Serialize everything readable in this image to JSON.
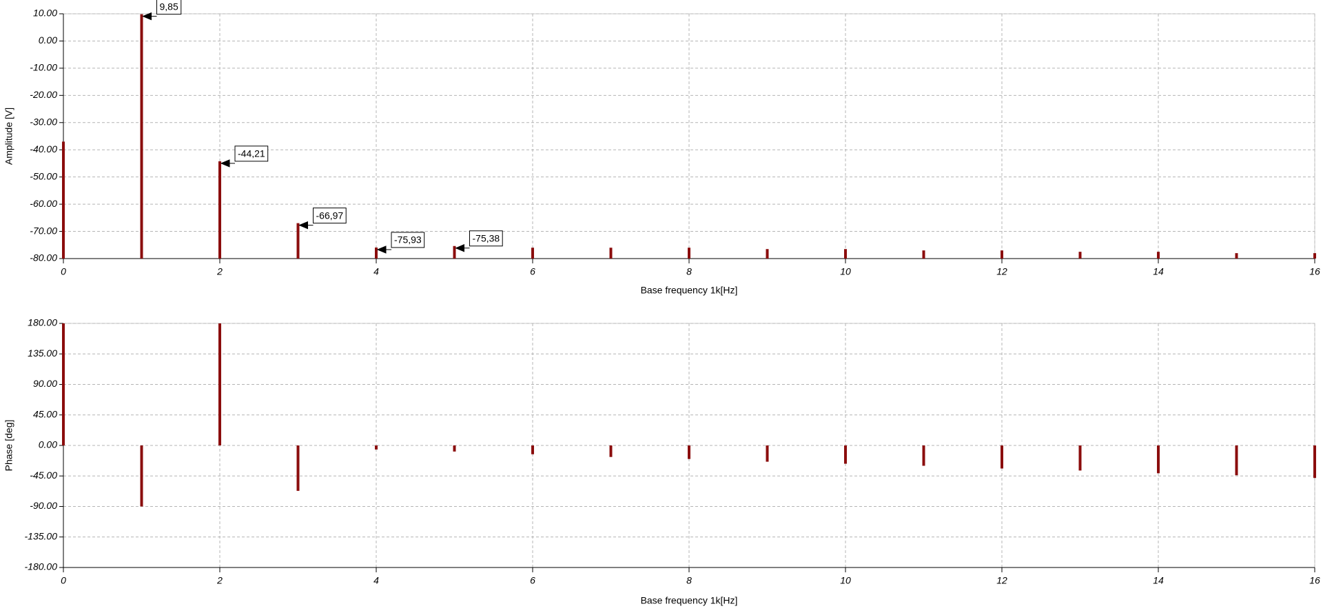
{
  "chart_data": [
    {
      "type": "stem",
      "ylabel": "Amplitude [V]",
      "xlabel": "Base frequency 1k[Hz]",
      "x": [
        0,
        1,
        2,
        3,
        4,
        5,
        6,
        7,
        8,
        9,
        10,
        11,
        12,
        13,
        14,
        15,
        16
      ],
      "values": [
        -37,
        9.85,
        -44.21,
        -66.97,
        -75.93,
        -75.38,
        -76,
        -76,
        -76,
        -76.5,
        -76.5,
        -77,
        -77,
        -77.5,
        -77.5,
        -78,
        -78
      ],
      "value_labels": [
        null,
        "9,85",
        "-44,21",
        "-66,97",
        "-75,93",
        "-75,38",
        null,
        null,
        null,
        null,
        null,
        null,
        null,
        null,
        null,
        null,
        null
      ],
      "color": "#8b0d0d",
      "baseline": "bottom",
      "xlim": [
        0,
        16
      ],
      "xticks": [
        0,
        2,
        4,
        6,
        8,
        10,
        12,
        14,
        16
      ],
      "ylim": [
        -80,
        10
      ],
      "yticks": [
        {
          "value": 10,
          "label": "10.00"
        },
        {
          "value": 0,
          "label": "0.00"
        },
        {
          "value": -10,
          "label": "-10.00"
        },
        {
          "value": -20,
          "label": "-20.00"
        },
        {
          "value": -30,
          "label": "-30.00"
        },
        {
          "value": -40,
          "label": "-40.00"
        },
        {
          "value": -50,
          "label": "-50.00"
        },
        {
          "value": -60,
          "label": "-60.00"
        },
        {
          "value": -70,
          "label": "-70.00"
        },
        {
          "value": -80,
          "label": "-80.00"
        }
      ],
      "grid": true
    },
    {
      "type": "stem",
      "ylabel": "Phase [deg]",
      "xlabel": "Base frequency 1k[Hz]",
      "x": [
        0,
        1,
        2,
        3,
        4,
        5,
        6,
        7,
        8,
        9,
        10,
        11,
        12,
        13,
        14,
        15,
        16
      ],
      "values": [
        180,
        -90,
        180,
        -67,
        -6,
        -9,
        -13,
        -17,
        -20,
        -24,
        -27,
        -30,
        -34,
        -37,
        -41,
        -44,
        -48
      ],
      "color": "#8b0d0d",
      "baseline": "zero",
      "xlim": [
        0,
        16
      ],
      "xticks": [
        0,
        2,
        4,
        6,
        8,
        10,
        12,
        14,
        16
      ],
      "ylim": [
        -180,
        180
      ],
      "yticks": [
        {
          "value": 180,
          "label": "180.00"
        },
        {
          "value": 135,
          "label": "135.00"
        },
        {
          "value": 90,
          "label": "90.00"
        },
        {
          "value": 45,
          "label": "45.00"
        },
        {
          "value": 0,
          "label": "0.00"
        },
        {
          "value": -45,
          "label": "-45.00"
        },
        {
          "value": -90,
          "label": "-90.00"
        },
        {
          "value": -135,
          "label": "-135.00"
        },
        {
          "value": -180,
          "label": "-180.00"
        }
      ],
      "grid": true
    }
  ]
}
